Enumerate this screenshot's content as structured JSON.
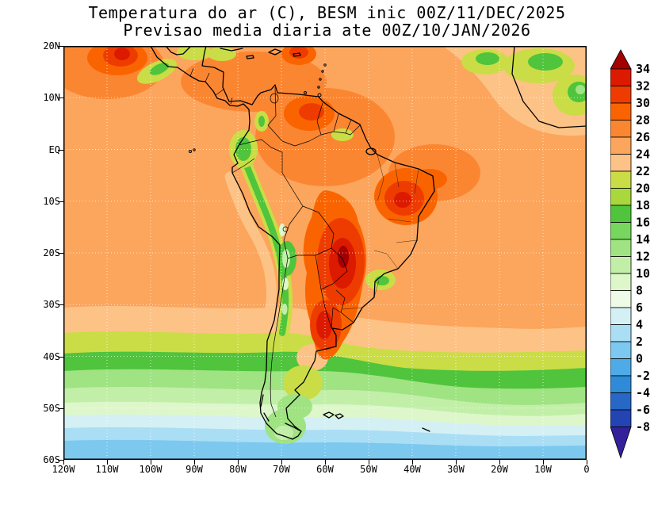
{
  "title": {
    "line1": "Temperatura do ar (C), BESM inic 00Z/11/DEC/2025",
    "line2": "Previsao media diaria ate 00Z/10/JAN/2026"
  },
  "chart_data": {
    "type": "heatmap",
    "title": "Temperatura do ar (C), BESM inic 00Z/11/DEC/2025",
    "subtitle": "Previsao media diaria ate 00Z/10/JAN/2026",
    "variable": "Air temperature (C), daily mean forecast",
    "model": "BESM",
    "init_time": "00Z/11/DEC/2025",
    "valid_through": "00Z/10/JAN/2026",
    "map_region": "South America and adjacent oceans",
    "lon_ticks": [
      "120W",
      "110W",
      "100W",
      "90W",
      "80W",
      "70W",
      "60W",
      "50W",
      "40W",
      "30W",
      "20W",
      "10W",
      "0"
    ],
    "lat_ticks": [
      "20N",
      "10N",
      "EQ",
      "10S",
      "20S",
      "30S",
      "40S",
      "50S",
      "60S"
    ],
    "x_range": "120W to 0",
    "y_range": "20N to 60S",
    "graticule": "dotted 10-degree grid",
    "contour_interval_c": 2,
    "legend_position": "right",
    "colorbar": {
      "units": "C",
      "ticks": [
        "34",
        "32",
        "30",
        "28",
        "26",
        "24",
        "22",
        "20",
        "18",
        "16",
        "14",
        "12",
        "10",
        "8",
        "6",
        "4",
        "2",
        "0",
        "-2",
        "-4",
        "-6",
        "-8"
      ],
      "band_colors": [
        "#dc1a00",
        "#ee3c00",
        "#fa6400",
        "#fb8632",
        "#fca55c",
        "#fdc286",
        "#cadd46",
        "#a8d83c",
        "#4fc43c",
        "#77d65e",
        "#a0e383",
        "#c2efa8",
        "#ddf7cb",
        "#eefbe6",
        "#d4f0f4",
        "#aadef5",
        "#7cc8ef",
        "#4fabe7",
        "#2f8ad8",
        "#2767c6",
        "#2344b2"
      ],
      "over_color": "#a50000",
      "under_color": "#34209a"
    },
    "field_estimates": [
      {
        "region": "Amazon basin and tropical lowlands",
        "approx_temp_c": "26-30"
      },
      {
        "region": "Gran Chaco (Paraguay / N Argentina) hot core",
        "approx_temp_c": "32 to >34"
      },
      {
        "region": "Central Argentina hot streak down to ~40S",
        "approx_temp_c": "28-32"
      },
      {
        "region": "Northeast Brazil interior hot spot",
        "approx_temp_c": "30-34"
      },
      {
        "region": "Southern Mexico hot spot (top left)",
        "approx_temp_c": "28-34"
      },
      {
        "region": "Andes cordillera cool strip",
        "approx_temp_c": "8-20"
      },
      {
        "region": "Altiplano cold core",
        "approx_temp_c": "8-12"
      },
      {
        "region": "Humboldt current coastal tongue off Peru/Chile",
        "approx_temp_c": "22-24"
      },
      {
        "region": "Tropical oceans (Caribbean, Atlantic, Pacific)",
        "approx_temp_c": "24-28"
      },
      {
        "region": "Southeast Brazil highlands",
        "approx_temp_c": "16-22"
      },
      {
        "region": "Central America and West Africa cool patches",
        "approx_temp_c": "16-22"
      },
      {
        "region": "Mid-latitude ocean band 35-45S",
        "approx_temp_c": "12-20"
      },
      {
        "region": "Patagonia",
        "approx_temp_c": "8-16"
      },
      {
        "region": "Southern ocean 50-60S",
        "approx_temp_c": "0-8"
      }
    ]
  }
}
